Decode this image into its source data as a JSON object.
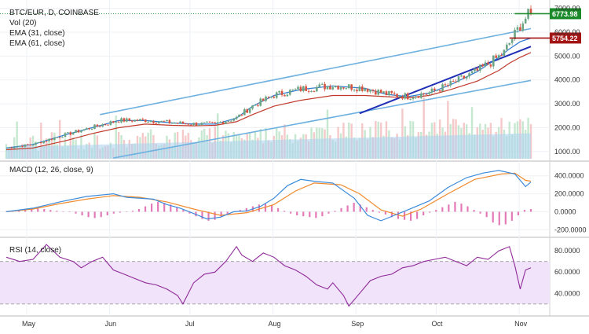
{
  "header": {
    "symbol": "BTC/EUR, D, COINBASE",
    "volume_label": "Vol (20)",
    "ema_fast_label": "EMA (31, close)",
    "ema_slow_label": "EMA (61, close)"
  },
  "colors": {
    "bull": "#6ba583",
    "bear": "#d75442",
    "ema_fast": "#2e7bcf",
    "ema_slow": "#c0392b",
    "channel": "#6fb1e0",
    "support": "#1f2fb5",
    "last_price": "#1a8a2a",
    "level": "#a31515",
    "macd": "#3d8bdb",
    "signal": "#f08a2c",
    "hist": "#e37ab7",
    "rsi": "#8e2a98",
    "rsi_band": "#f1e3fa"
  },
  "chart_data": [
    {
      "type": "candlestick",
      "title": "BTC/EUR, D, COINBASE",
      "x_ticks": [
        "May",
        "Jun",
        "Jul",
        "Aug",
        "Sep",
        "Oct",
        "Nov"
      ],
      "y_ticks": [
        1000,
        2000,
        3000,
        4000,
        5000,
        6000,
        7000
      ],
      "y_tick_labels": [
        "1000.00",
        "2000.00",
        "3000.00",
        "4000.00",
        "5000.00",
        "6000.00",
        "7000.00"
      ],
      "ylim": [
        700,
        7150
      ],
      "last_price": 6773.98,
      "last_price_label": "6773.98",
      "level_price": 5754.22,
      "level_label": "5754.22",
      "series": [
        {
          "name": "EMA (31, close)",
          "points": [
            [
              0,
              1150
            ],
            [
              10,
              1300
            ],
            [
              22,
              1700
            ],
            [
              32,
              2000
            ],
            [
              42,
              2300
            ],
            [
              52,
              2300
            ],
            [
              62,
              2200
            ],
            [
              70,
              2150
            ],
            [
              78,
              2150
            ],
            [
              86,
              2400
            ],
            [
              92,
              2900
            ],
            [
              100,
              3350
            ],
            [
              110,
              3600
            ],
            [
              122,
              3750
            ],
            [
              134,
              3650
            ],
            [
              142,
              3400
            ],
            [
              150,
              3300
            ],
            [
              158,
              3450
            ],
            [
              166,
              3800
            ],
            [
              176,
              4350
            ],
            [
              184,
              4950
            ],
            [
              188,
              5300
            ],
            [
              192,
              5600
            ],
            [
              196,
              5750
            ]
          ]
        },
        {
          "name": "EMA (61, close)",
          "points": [
            [
              0,
              1080
            ],
            [
              10,
              1150
            ],
            [
              22,
              1450
            ],
            [
              32,
              1750
            ],
            [
              42,
              2000
            ],
            [
              52,
              2150
            ],
            [
              62,
              2100
            ],
            [
              70,
              2080
            ],
            [
              78,
              2100
            ],
            [
              86,
              2250
            ],
            [
              92,
              2550
            ],
            [
              100,
              2900
            ],
            [
              110,
              3150
            ],
            [
              122,
              3350
            ],
            [
              134,
              3350
            ],
            [
              142,
              3300
            ],
            [
              150,
              3250
            ],
            [
              158,
              3350
            ],
            [
              166,
              3600
            ],
            [
              176,
              3950
            ],
            [
              184,
              4400
            ],
            [
              188,
              4700
            ],
            [
              192,
              4950
            ],
            [
              196,
              5150
            ]
          ]
        }
      ],
      "trendlines": [
        {
          "name": "channel-upper",
          "from": [
            35,
            2550
          ],
          "to": [
            196,
            6150
          ]
        },
        {
          "name": "channel-lower",
          "from": [
            40,
            730
          ],
          "to": [
            196,
            3980
          ]
        },
        {
          "name": "support",
          "from": [
            132,
            2600
          ],
          "to": [
            196,
            5400
          ]
        }
      ]
    },
    {
      "type": "bar",
      "title": "Vol (20)",
      "series": [
        {
          "name": "Vol (20)"
        }
      ]
    },
    {
      "type": "line",
      "title": "MACD (12, 26, close, 9)",
      "y_ticks": [
        -200,
        0,
        200,
        400
      ],
      "y_tick_labels": [
        "-200.0000",
        "0.0000",
        "200.0000",
        "400.0000"
      ],
      "ylim": [
        -250,
        520
      ],
      "points": [
        [
          0,
          0
        ],
        [
          10,
          40
        ],
        [
          20,
          110
        ],
        [
          30,
          170
        ],
        [
          40,
          200
        ],
        [
          45,
          160
        ],
        [
          55,
          140
        ],
        [
          60,
          80
        ],
        [
          65,
          40
        ],
        [
          70,
          -20
        ],
        [
          75,
          -80
        ],
        [
          80,
          -60
        ],
        [
          85,
          0
        ],
        [
          90,
          10
        ],
        [
          95,
          60
        ],
        [
          100,
          150
        ],
        [
          105,
          290
        ],
        [
          110,
          360
        ],
        [
          115,
          340
        ],
        [
          122,
          320
        ],
        [
          130,
          150
        ],
        [
          135,
          -40
        ],
        [
          140,
          -100
        ],
        [
          145,
          -40
        ],
        [
          150,
          20
        ],
        [
          158,
          120
        ],
        [
          165,
          270
        ],
        [
          172,
          380
        ],
        [
          178,
          430
        ],
        [
          184,
          460
        ],
        [
          190,
          420
        ],
        [
          194,
          280
        ],
        [
          196,
          330
        ]
      ],
      "signal": [
        [
          0,
          0
        ],
        [
          10,
          30
        ],
        [
          20,
          90
        ],
        [
          30,
          140
        ],
        [
          40,
          180
        ],
        [
          50,
          160
        ],
        [
          60,
          110
        ],
        [
          70,
          30
        ],
        [
          80,
          -40
        ],
        [
          90,
          -10
        ],
        [
          100,
          80
        ],
        [
          108,
          230
        ],
        [
          115,
          320
        ],
        [
          125,
          300
        ],
        [
          132,
          200
        ],
        [
          140,
          20
        ],
        [
          148,
          -50
        ],
        [
          155,
          30
        ],
        [
          165,
          200
        ],
        [
          175,
          360
        ],
        [
          185,
          420
        ],
        [
          190,
          430
        ],
        [
          194,
          350
        ],
        [
          196,
          340
        ]
      ],
      "histogram": [
        5,
        10,
        20,
        30,
        40,
        35,
        30,
        20,
        10,
        5,
        -5,
        -20,
        -40,
        -60,
        -70,
        -60,
        -40,
        -20,
        -10,
        0,
        10,
        30,
        60,
        90,
        110,
        100,
        80,
        50,
        20,
        -20,
        -50,
        -80,
        -100,
        -90,
        -60,
        -30,
        0,
        20,
        40,
        60,
        80,
        90,
        70,
        40,
        10,
        -20,
        -40,
        -50,
        -60,
        -70,
        -50,
        -20,
        10,
        40,
        70,
        100,
        80,
        50,
        20,
        -10,
        -30,
        -60,
        -80,
        -90,
        -100,
        -80,
        -40,
        -10,
        20,
        50,
        80,
        110,
        90,
        60,
        20,
        -20,
        -60,
        -120,
        -150,
        -140,
        -100,
        -40,
        20,
        30
      ]
    },
    {
      "type": "line",
      "title": "RSI (14, close)",
      "y_ticks": [
        40,
        60,
        80
      ],
      "y_tick_labels": [
        "40.0000",
        "60.0000",
        "80.0000"
      ],
      "ylim": [
        21,
        89
      ],
      "bands": [
        30,
        70
      ],
      "points": [
        [
          0,
          74
        ],
        [
          5,
          70
        ],
        [
          10,
          72
        ],
        [
          15,
          86
        ],
        [
          20,
          74
        ],
        [
          25,
          70
        ],
        [
          28,
          64
        ],
        [
          32,
          70
        ],
        [
          36,
          74
        ],
        [
          40,
          62
        ],
        [
          44,
          58
        ],
        [
          48,
          54
        ],
        [
          52,
          50
        ],
        [
          56,
          48
        ],
        [
          60,
          44
        ],
        [
          64,
          38
        ],
        [
          66,
          30
        ],
        [
          70,
          50
        ],
        [
          74,
          58
        ],
        [
          78,
          60
        ],
        [
          82,
          70
        ],
        [
          86,
          84
        ],
        [
          88,
          76
        ],
        [
          92,
          70
        ],
        [
          96,
          78
        ],
        [
          100,
          74
        ],
        [
          104,
          66
        ],
        [
          108,
          62
        ],
        [
          112,
          56
        ],
        [
          116,
          48
        ],
        [
          120,
          44
        ],
        [
          122,
          50
        ],
        [
          126,
          38
        ],
        [
          128,
          28
        ],
        [
          132,
          40
        ],
        [
          136,
          52
        ],
        [
          140,
          56
        ],
        [
          144,
          58
        ],
        [
          148,
          64
        ],
        [
          152,
          66
        ],
        [
          156,
          70
        ],
        [
          160,
          72
        ],
        [
          164,
          74
        ],
        [
          168,
          70
        ],
        [
          172,
          66
        ],
        [
          176,
          74
        ],
        [
          180,
          72
        ],
        [
          184,
          80
        ],
        [
          188,
          84
        ],
        [
          190,
          66
        ],
        [
          192,
          44
        ],
        [
          194,
          62
        ],
        [
          196,
          64
        ]
      ]
    }
  ],
  "x_axis": {
    "labels": [
      "May",
      "Jun",
      "Jul",
      "Aug",
      "Sep",
      "Oct",
      "Nov"
    ]
  },
  "macd_pane": {
    "label": "MACD (12, 26, close, 9)"
  },
  "rsi_pane": {
    "label": "RSI (14, close)"
  }
}
